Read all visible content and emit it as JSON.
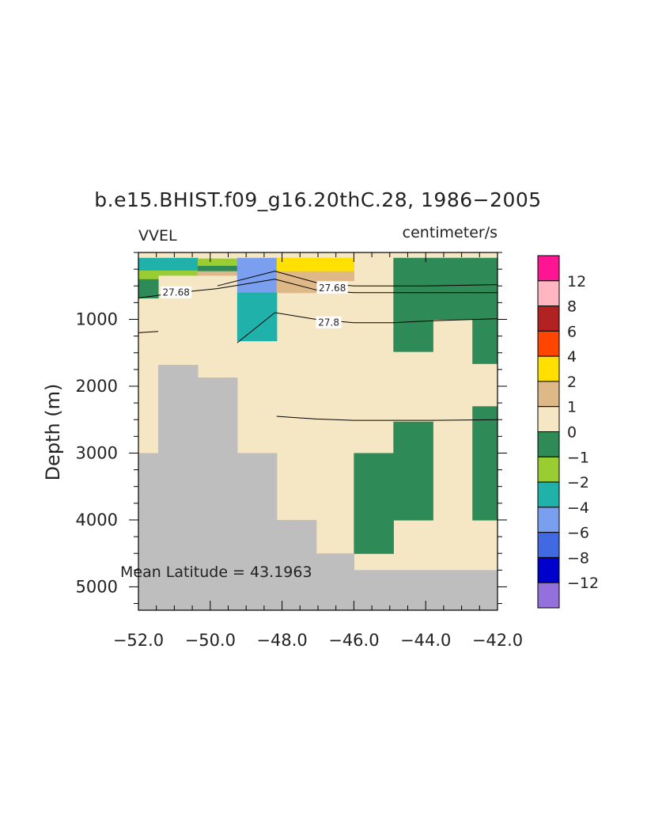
{
  "chart_data": {
    "type": "heatmap",
    "title": "b.e15.BHIST.f09_g16.20thC.28, 1986−2005",
    "variable_label": "VVEL",
    "units_label": "centimeter/s",
    "ylabel": "Depth (m)",
    "xlabel": "",
    "annotation": "Mean Latitude = 43.1963",
    "xlim": [
      -52.0,
      -42.0
    ],
    "ylim": [
      0,
      5350
    ],
    "y_inverted": true,
    "x_ticks": [
      -52.0,
      -50.0,
      -48.0,
      -46.0,
      -44.0,
      -42.0
    ],
    "x_tick_labels": [
      "−52.0",
      "−50.0",
      "−48.0",
      "−46.0",
      "−44.0",
      "−42.0"
    ],
    "y_ticks": [
      1000,
      2000,
      3000,
      4000,
      5000
    ],
    "y_tick_labels": [
      "1000",
      "2000",
      "3000",
      "4000",
      "5000"
    ],
    "x_minor_step": 0.5,
    "y_minor_step": 250,
    "colorbar": {
      "labels": [
        "12",
        "8",
        "6",
        "4",
        "2",
        "1",
        "0",
        "−1",
        "−2",
        "−4",
        "−6",
        "−8",
        "−12"
      ],
      "colors_top_to_bottom": [
        "#ff1493",
        "#ffb6c1",
        "#b22222",
        "#ff4500",
        "#ffe000",
        "#deb887",
        "#f5e6c4",
        "#2e8b57",
        "#9acd32",
        "#20b2aa",
        "#7b9fef",
        "#4169e1",
        "#0000cd",
        "#9370db"
      ]
    },
    "land_color": "#bebebe",
    "cells": [
      {
        "x0": -52.0,
        "x1": -51.45,
        "z0": 0,
        "z1": 5350,
        "color": "#f5e6c4"
      },
      {
        "x0": -51.45,
        "x1": -50.9,
        "z0": 0,
        "z1": 5350,
        "color": "#f5e6c4"
      },
      {
        "x0": -50.9,
        "x1": -49.8,
        "z0": 0,
        "z1": 5350,
        "color": "#f5e6c4"
      },
      {
        "x0": -49.8,
        "x1": -48.7,
        "z0": 0,
        "z1": 5350,
        "color": "#f5e6c4"
      },
      {
        "x0": -48.7,
        "x1": -47.6,
        "z0": 0,
        "z1": 5350,
        "color": "#f5e6c4"
      },
      {
        "x0": -47.6,
        "x1": -46.0,
        "z0": 0,
        "z1": 5350,
        "color": "#f5e6c4"
      },
      {
        "x0": -46.0,
        "x1": -44.9,
        "z0": 0,
        "z1": 5350,
        "color": "#f5e6c4"
      },
      {
        "x0": -44.9,
        "x1": -43.8,
        "z0": 0,
        "z1": 5350,
        "color": "#f5e6c4"
      },
      {
        "x0": -43.8,
        "x1": -42.7,
        "z0": 0,
        "z1": 5350,
        "color": "#f5e6c4"
      },
      {
        "x0": -42.7,
        "x1": -42.0,
        "z0": 0,
        "z1": 5350,
        "color": "#f5e6c4"
      },
      {
        "x0": -52.0,
        "x1": -50.35,
        "z0": 80,
        "z1": 270,
        "color": "#20b2aa"
      },
      {
        "x0": -52.0,
        "x1": -51.45,
        "z0": 270,
        "z1": 400,
        "color": "#9acd32"
      },
      {
        "x0": -51.45,
        "x1": -50.35,
        "z0": 270,
        "z1": 340,
        "color": "#9acd32"
      },
      {
        "x0": -52.0,
        "x1": -51.45,
        "z0": 400,
        "z1": 680,
        "color": "#2e8b57"
      },
      {
        "x0": -50.35,
        "x1": -49.25,
        "z0": 90,
        "z1": 200,
        "color": "#9acd32"
      },
      {
        "x0": -50.35,
        "x1": -49.25,
        "z0": 200,
        "z1": 280,
        "color": "#2e8b57"
      },
      {
        "x0": -50.35,
        "x1": -49.25,
        "z0": 280,
        "z1": 340,
        "color": "#deb887"
      },
      {
        "x0": -49.25,
        "x1": -48.15,
        "z0": 80,
        "z1": 600,
        "color": "#7b9fef"
      },
      {
        "x0": -49.25,
        "x1": -48.15,
        "z0": 600,
        "z1": 1320,
        "color": "#20b2aa"
      },
      {
        "x0": -48.15,
        "x1": -46.0,
        "z0": 80,
        "z1": 280,
        "color": "#ffe000"
      },
      {
        "x0": -48.15,
        "x1": -46.0,
        "z0": 280,
        "z1": 420,
        "color": "#deb887"
      },
      {
        "x0": -48.15,
        "x1": -47.05,
        "z0": 420,
        "z1": 600,
        "color": "#deb887"
      },
      {
        "x0": -44.9,
        "x1": -42.0,
        "z0": 80,
        "z1": 120,
        "color": "#2e8b57"
      },
      {
        "x0": -44.9,
        "x1": -43.8,
        "z0": 120,
        "z1": 1480,
        "color": "#2e8b57"
      },
      {
        "x0": -43.8,
        "x1": -42.7,
        "z0": 120,
        "z1": 200,
        "color": "#2e8b57"
      },
      {
        "x0": -43.8,
        "x1": -42.7,
        "z0": 200,
        "z1": 1000,
        "color": "#2e8b57"
      },
      {
        "x0": -42.7,
        "x1": -42.0,
        "z0": 120,
        "z1": 1660,
        "color": "#2e8b57"
      },
      {
        "x0": -44.9,
        "x1": -43.8,
        "z0": 2530,
        "z1": 4000,
        "color": "#2e8b57"
      },
      {
        "x0": -46.0,
        "x1": -44.9,
        "z0": 3000,
        "z1": 4500,
        "color": "#2e8b57"
      },
      {
        "x0": -42.7,
        "x1": -42.0,
        "z0": 2300,
        "z1": 4000,
        "color": "#2e8b57"
      }
    ],
    "land": [
      {
        "x0": -52.0,
        "x1": -51.45,
        "z0": 3000,
        "z1": 5350
      },
      {
        "x0": -51.45,
        "x1": -50.35,
        "z0": 1680,
        "z1": 5350
      },
      {
        "x0": -50.35,
        "x1": -49.25,
        "z0": 1870,
        "z1": 5350
      },
      {
        "x0": -49.25,
        "x1": -48.15,
        "z0": 3000,
        "z1": 5350
      },
      {
        "x0": -48.15,
        "x1": -47.05,
        "z0": 4000,
        "z1": 5350
      },
      {
        "x0": -47.05,
        "x1": -46.0,
        "z0": 4500,
        "z1": 5350
      },
      {
        "x0": -46.0,
        "x1": -42.0,
        "z0": 4750,
        "z1": 5350
      }
    ],
    "contours": [
      {
        "label": "27.68",
        "label_at": [
          -50.95,
          600
        ],
        "points": [
          [
            -52.0,
            680
          ],
          [
            -50.9,
            600
          ],
          [
            -49.8,
            540
          ],
          [
            -48.2,
            400
          ],
          [
            -47.05,
            560
          ],
          [
            -46.0,
            600
          ],
          [
            -44.0,
            600
          ],
          [
            -42.0,
            600
          ]
        ]
      },
      {
        "label": "27.68",
        "label_at": [
          -46.6,
          530
        ],
        "points": [
          [
            -49.8,
            500
          ],
          [
            -48.2,
            280
          ],
          [
            -47.05,
            450
          ],
          [
            -46.0,
            500
          ],
          [
            -44.0,
            500
          ],
          [
            -42.0,
            480
          ]
        ]
      },
      {
        "label": "27.8",
        "label_at": [
          -46.7,
          1050
        ],
        "points": [
          [
            -49.25,
            1350
          ],
          [
            -48.2,
            900
          ],
          [
            -47.05,
            1000
          ],
          [
            -46.0,
            1050
          ],
          [
            -44.9,
            1050
          ],
          [
            -43.8,
            1020
          ],
          [
            -42.0,
            990
          ]
        ]
      },
      {
        "label": "",
        "label_at": null,
        "points": [
          [
            -52.0,
            1200
          ],
          [
            -51.45,
            1180
          ]
        ]
      },
      {
        "label": "",
        "label_at": null,
        "points": [
          [
            -48.15,
            2450
          ],
          [
            -47.05,
            2490
          ],
          [
            -46.0,
            2510
          ],
          [
            -44.9,
            2510
          ],
          [
            -43.8,
            2510
          ],
          [
            -42.0,
            2500
          ]
        ]
      }
    ]
  }
}
